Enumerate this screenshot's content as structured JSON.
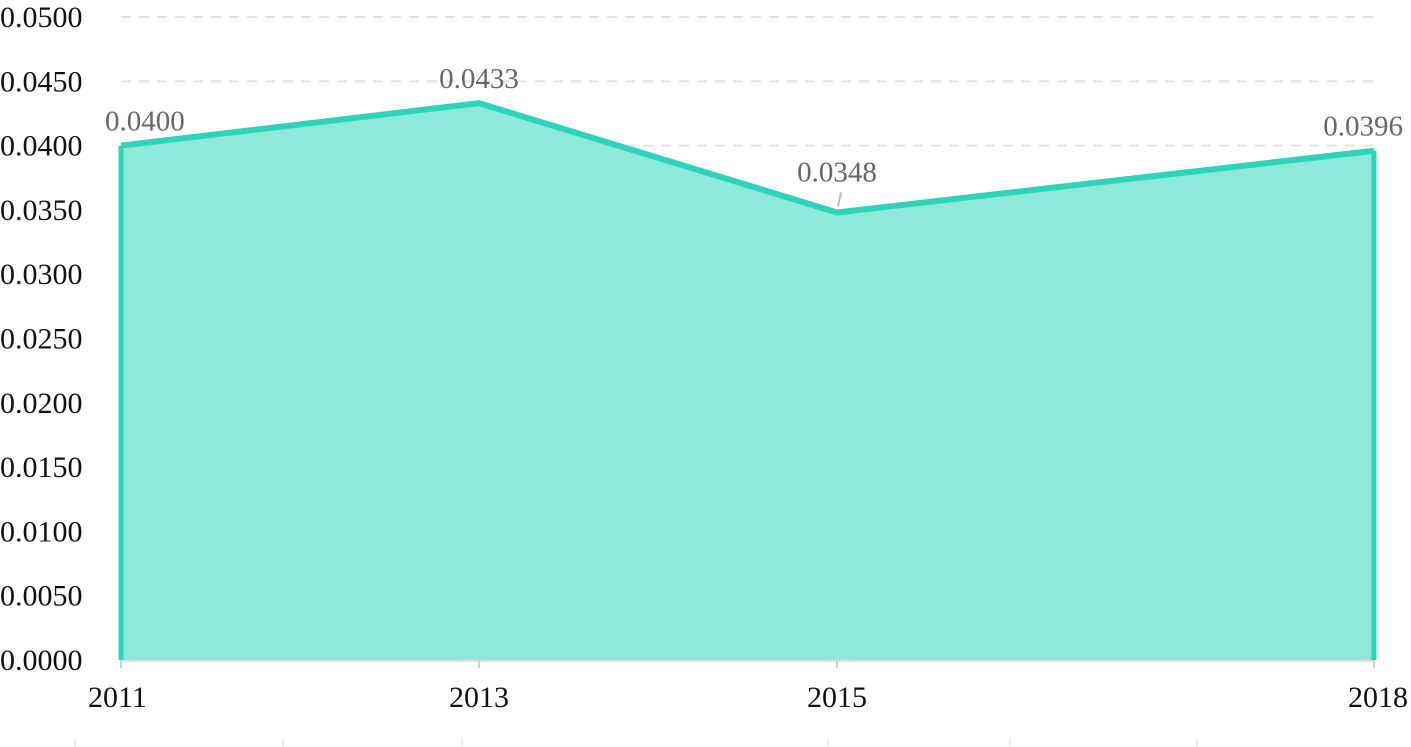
{
  "chart_data": {
    "type": "area",
    "categories": [
      "2011",
      "2013",
      "2015",
      "2018"
    ],
    "series": [
      {
        "values": [
          0.04,
          0.0433,
          0.0348,
          0.0396
        ]
      }
    ],
    "data_labels": [
      "0.0400",
      "0.0433",
      "0.0348",
      "0.0396"
    ],
    "y_ticks": [
      "0.0000",
      "0.0050",
      "0.0100",
      "0.0150",
      "0.0200",
      "0.0250",
      "0.0300",
      "0.0350",
      "0.0400",
      "0.0450",
      "0.0500"
    ],
    "ylim": [
      0,
      0.05
    ],
    "grid": true,
    "legend": "none",
    "colors": {
      "line": "#2ed3bb",
      "fill": "#8fe9db",
      "grid": "#e3e3e3",
      "label": "#666666"
    }
  }
}
